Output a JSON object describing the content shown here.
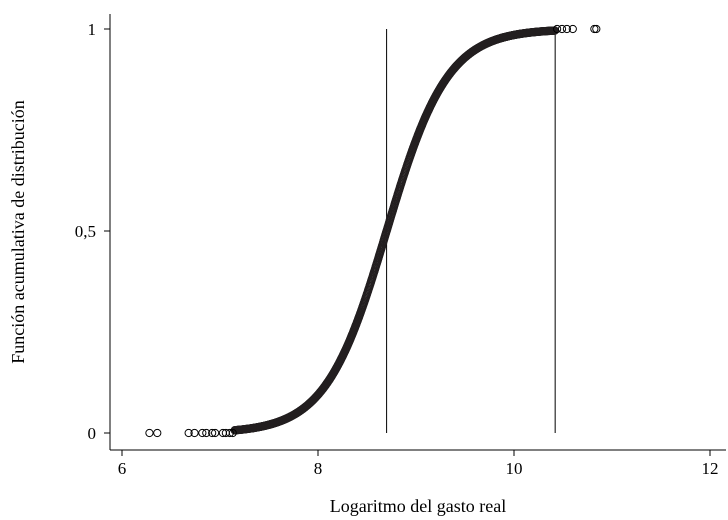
{
  "chart_data": {
    "type": "scatter",
    "title": "",
    "xlabel": "Logaritmo del gasto real",
    "ylabel": "Función acumulativa de distribución",
    "xlim": [
      6,
      12
    ],
    "ylim": [
      0,
      1
    ],
    "x_ticks": [
      6,
      8,
      10,
      12
    ],
    "y_ticks": [
      0,
      0.5,
      1
    ],
    "x_tick_labels": [
      "6",
      "8",
      "10",
      "12"
    ],
    "y_tick_labels": [
      "0",
      "0,5",
      "1"
    ],
    "grid": false,
    "legend": "none",
    "marker": "hollow-circle",
    "marker_color": "#231f20",
    "reference_lines_x": [
      8.7,
      10.42
    ],
    "curve": {
      "description": "empirical CDF",
      "center": 8.7,
      "spread": 0.31
    },
    "points": [
      {
        "x": 6.28,
        "y": 0.0
      },
      {
        "x": 6.36,
        "y": 0.0
      },
      {
        "x": 6.68,
        "y": 0.0
      },
      {
        "x": 6.74,
        "y": 0.0
      },
      {
        "x": 6.82,
        "y": 0.0
      },
      {
        "x": 6.86,
        "y": 0.0
      },
      {
        "x": 6.92,
        "y": 0.0
      },
      {
        "x": 6.95,
        "y": 0.0
      },
      {
        "x": 7.03,
        "y": 0.0
      },
      {
        "x": 7.06,
        "y": 0.0
      },
      {
        "x": 7.1,
        "y": 0.0
      },
      {
        "x": 7.13,
        "y": 0.0
      },
      {
        "x": 10.44,
        "y": 1.0
      },
      {
        "x": 10.49,
        "y": 1.0
      },
      {
        "x": 10.54,
        "y": 1.0
      },
      {
        "x": 10.6,
        "y": 1.0
      },
      {
        "x": 10.82,
        "y": 1.0
      },
      {
        "x": 10.84,
        "y": 1.0
      }
    ]
  }
}
